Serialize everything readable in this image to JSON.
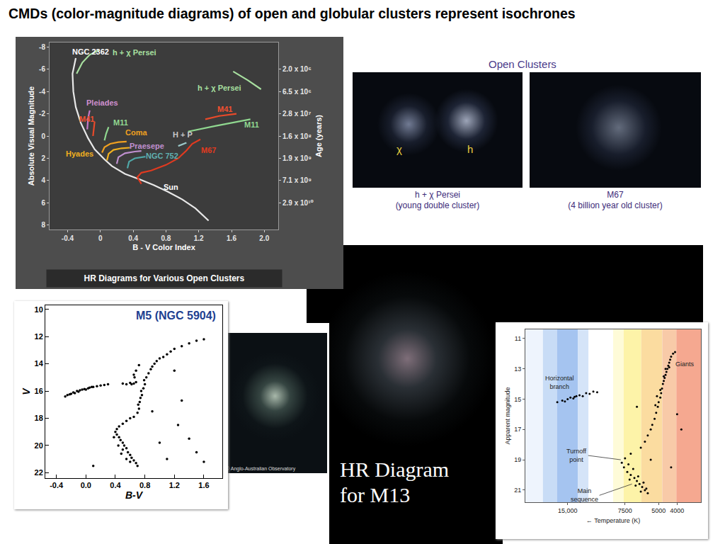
{
  "title": "CMDs (color-magnitude diagrams) of open and globular clusters represent isochrones",
  "photos": {
    "heading": "Open Clusters",
    "items": [
      {
        "caption": "h + χ Persei",
        "note": "(young double cluster)",
        "marks": [
          "χ",
          "h"
        ]
      },
      {
        "caption": "M67",
        "note": "(4 billion year old cluster)"
      }
    ],
    "credit": "© Anglo-Australian Observatory"
  },
  "chart_data": [
    {
      "type": "line",
      "title": "HR Diagrams for Various Open Clusters",
      "x_label": "B - V Color Index",
      "y_label": "Absolute Visual Magnitude",
      "y2_label": "Age (years)",
      "xlim": [
        -0.62,
        2.17
      ],
      "xticks": [
        -0.4,
        0,
        0.4,
        0.8,
        1.2,
        1.6,
        {
          "value": 2,
          "label": "2.0"
        }
      ],
      "ylim": [
        8.4,
        -8.4
      ],
      "yticks": [
        -8,
        -6,
        -4,
        -2,
        0,
        2,
        4,
        6,
        8
      ],
      "y2lim": [
        8.4,
        -8.4
      ],
      "y2ticks": [
        {
          "value": -6,
          "label": "2.0 x 10⁶"
        },
        {
          "value": -4,
          "label": "6.5 x 10⁶"
        },
        {
          "value": -2,
          "label": "2.8 x 10⁷"
        },
        {
          "value": 0,
          "label": "1.6 x 10⁸"
        },
        {
          "value": 2,
          "label": "1.9 x 10⁹"
        },
        {
          "value": 4,
          "label": "7.1 x 10⁹"
        },
        {
          "value": 6,
          "label": "2.9 x 10¹⁰"
        }
      ],
      "grid": false,
      "series": [
        {
          "color": "#e8e8e8",
          "x": [
            -0.3,
            -0.34,
            -0.33,
            -0.3,
            -0.24,
            -0.15,
            -0.07,
            0.05,
            0.14,
            0.3,
            0.48,
            0.65,
            0.82,
            1.0,
            1.16,
            1.32
          ],
          "values": [
            -7.0,
            -5.6,
            -4.0,
            -2.6,
            -1.2,
            0.2,
            1.2,
            2.1,
            2.7,
            3.4,
            3.9,
            4.4,
            5.0,
            5.7,
            6.5,
            7.6
          ]
        },
        {
          "color": "#a8e0a0",
          "x": [
            -0.29,
            -0.22,
            -0.13,
            -0.02
          ],
          "values": [
            -5.6,
            -6.6,
            -7.3,
            -7.7
          ]
        },
        {
          "color": "#a8e0a0",
          "x": [
            1.62,
            1.8,
            1.96
          ],
          "values": [
            -5.8,
            -5.0,
            -4.2
          ]
        },
        {
          "color": "#c878c8",
          "x": [
            -0.16,
            -0.15,
            -0.13
          ],
          "values": [
            -0.6,
            -1.6,
            -2.3
          ]
        },
        {
          "color": "#e84a2a",
          "x": [
            -0.09,
            -0.08,
            -0.07
          ],
          "values": [
            0.0,
            -0.7,
            -1.3
          ]
        },
        {
          "color": "#e84a2a",
          "x": [
            1.28,
            1.45,
            1.66
          ],
          "values": [
            -1.5,
            -1.8,
            -2.0
          ]
        },
        {
          "color": "#90d890",
          "x": [
            0.05,
            0.07,
            0.1
          ],
          "values": [
            0.4,
            -0.2,
            -0.8
          ]
        },
        {
          "color": "#90d890",
          "x": [
            1.07,
            1.4,
            1.83
          ],
          "values": [
            -0.4,
            -0.9,
            -1.5
          ]
        },
        {
          "color": "#f0a020",
          "x": [
            0.02,
            0.05,
            0.12,
            0.22,
            0.32
          ],
          "values": [
            1.5,
            1.0,
            0.7,
            0.55,
            0.5
          ]
        },
        {
          "color": "#f0b020",
          "x": [
            0.08,
            0.1,
            0.16,
            0.26,
            0.36
          ],
          "values": [
            2.2,
            1.6,
            1.25,
            1.1,
            1.05
          ]
        },
        {
          "color": "#c090d0",
          "x": [
            0.2,
            0.22,
            0.3,
            0.42,
            0.5
          ],
          "values": [
            2.5,
            1.9,
            1.55,
            1.4,
            1.35
          ]
        },
        {
          "color": "#50a8a8",
          "x": [
            0.33,
            0.35,
            0.42,
            0.55
          ],
          "values": [
            2.9,
            2.3,
            2.0,
            1.85
          ]
        },
        {
          "color": "#9ac8c8",
          "x": [
            0.95,
            1.05
          ],
          "values": [
            0.9,
            0.6
          ]
        },
        {
          "color": "#e03a20",
          "x": [
            0.5,
            0.45,
            0.5,
            0.62,
            0.8,
            0.95,
            1.05,
            1.12,
            1.22
          ],
          "values": [
            4.3,
            3.7,
            3.3,
            3.1,
            2.6,
            2.0,
            1.3,
            0.7,
            0.3
          ]
        }
      ],
      "annotations": [
        {
          "text": "NGC 2362",
          "x": -0.12,
          "y": -7.6,
          "color": "#ffffff"
        },
        {
          "text": "h + χ Persei",
          "x": 0.42,
          "y": -7.5,
          "color": "#a8e0a0"
        },
        {
          "text": "h + χ Persei",
          "x": 1.45,
          "y": -4.3,
          "color": "#a8e0a0"
        },
        {
          "text": "Pleiades",
          "x": 0.02,
          "y": -3.0,
          "color": "#d090d0"
        },
        {
          "text": "M41",
          "x": -0.17,
          "y": -1.5,
          "color": "#f05030"
        },
        {
          "text": "M41",
          "x": 1.52,
          "y": -2.4,
          "color": "#f05030"
        },
        {
          "text": "M11",
          "x": 0.25,
          "y": -1.2,
          "color": "#90d890"
        },
        {
          "text": "M11",
          "x": 1.85,
          "y": -1.0,
          "color": "#90d890"
        },
        {
          "text": "Coma",
          "x": 0.44,
          "y": -0.3,
          "color": "#f0a020"
        },
        {
          "text": "H + P",
          "x": 1.0,
          "y": -0.1,
          "color": "#c8c8c8"
        },
        {
          "text": "Praesepe",
          "x": 0.57,
          "y": 0.9,
          "color": "#c090d0"
        },
        {
          "text": "Hyades",
          "x": -0.25,
          "y": 1.6,
          "color": "#f0b020"
        },
        {
          "text": "NGC 752",
          "x": 0.75,
          "y": 1.8,
          "color": "#60b0b0"
        },
        {
          "text": "M67",
          "x": 1.32,
          "y": 1.3,
          "color": "#e03a20"
        },
        {
          "text": "Sun",
          "x": 0.86,
          "y": 4.6,
          "color": "#ffffff"
        }
      ]
    },
    {
      "type": "scatter",
      "title": "M5 (NGC 5904)",
      "x_label": "B-V",
      "y_label": "V",
      "xlim": [
        -0.55,
        1.85
      ],
      "xticks": [
        -0.4,
        {
          "value": 0,
          "label": "0.0"
        },
        0.4,
        0.8,
        1.2,
        1.6
      ],
      "ylim": [
        22.4,
        9.7
      ],
      "yticks": [
        10,
        12,
        14,
        16,
        18,
        20,
        22
      ],
      "grid": false,
      "color": "#000000",
      "marker": "circle",
      "x": [
        -0.28,
        -0.25,
        -0.22,
        -0.2,
        -0.17,
        -0.15,
        -0.12,
        -0.1,
        -0.08,
        -0.05,
        -0.02,
        0.0,
        0.03,
        0.05,
        0.08,
        0.1,
        0.15,
        0.2,
        0.25,
        0.3,
        0.5,
        0.55,
        0.6,
        0.62,
        0.65,
        0.68,
        0.7,
        0.72,
        0.71,
        0.73,
        0.74,
        0.76,
        0.75,
        0.78,
        0.8,
        0.79,
        0.82,
        0.85,
        0.88,
        0.9,
        0.93,
        0.96,
        1.0,
        1.05,
        1.1,
        1.15,
        1.2,
        1.3,
        1.4,
        1.5,
        1.6,
        0.65,
        0.68,
        0.72,
        0.66,
        0.55,
        0.6,
        0.65,
        0.5,
        0.45,
        0.42,
        0.4,
        0.42,
        0.45,
        0.47,
        0.5,
        0.52,
        0.55,
        0.5,
        0.57,
        0.6,
        0.62,
        0.55,
        0.65,
        0.68,
        0.7,
        0.6,
        0.48,
        0.44,
        0.38,
        1.2,
        1.3,
        1.4,
        1.5,
        1.0,
        0.1,
        1.1,
        1.6,
        0.9,
        1.25
      ],
      "values": [
        16.4,
        16.3,
        16.25,
        16.2,
        16.1,
        16.15,
        16.0,
        16.05,
        15.95,
        15.9,
        15.85,
        15.9,
        15.8,
        15.75,
        15.7,
        15.7,
        15.65,
        15.6,
        15.55,
        15.5,
        15.45,
        15.5,
        15.4,
        15.5,
        15.45,
        15.35,
        17.6,
        17.3,
        17.0,
        16.8,
        16.5,
        16.3,
        16.0,
        15.8,
        15.5,
        15.2,
        15.0,
        14.7,
        14.4,
        14.2,
        14.0,
        13.8,
        13.6,
        13.5,
        13.3,
        13.1,
        12.9,
        12.7,
        12.5,
        12.3,
        12.2,
        14.8,
        14.5,
        14.1,
        15.0,
        18.2,
        18.0,
        17.9,
        18.4,
        18.6,
        18.8,
        19.0,
        19.2,
        19.4,
        19.6,
        19.8,
        20.0,
        20.2,
        20.3,
        20.5,
        20.7,
        20.9,
        21.0,
        21.1,
        21.3,
        21.5,
        21.2,
        20.6,
        20.0,
        19.4,
        14.5,
        16.7,
        19.5,
        20.5,
        19.8,
        21.5,
        21.0,
        21.2,
        17.5,
        18.5
      ]
    },
    {
      "type": "scatter",
      "title": "HR Diagram\nfor M13",
      "x_label": "← Temperature (K)",
      "y_label": "Apparent magnitude",
      "log": "x",
      "xlim": [
        25000,
        3000
      ],
      "xticks": [
        {
          "value": 15000,
          "label": "15,000"
        },
        7500,
        5000,
        4000
      ],
      "ylim": [
        21.8,
        10.4
      ],
      "yticks": [
        11,
        13,
        15,
        17,
        19,
        21
      ],
      "grid": false,
      "color": "#000000",
      "marker": "circle",
      "x": [
        17000,
        16000,
        15000,
        14500,
        14000,
        13500,
        13000,
        12500,
        12000,
        11500,
        11000,
        10500,
        15500,
        13800,
        4300,
        4350,
        4400,
        4450,
        4500,
        4550,
        4600,
        4650,
        4700,
        4750,
        4800,
        4850,
        4900,
        5000,
        5050,
        5150,
        5250,
        5400,
        5500,
        5700,
        5900,
        6200,
        4200,
        4100,
        4400,
        4600,
        4700,
        4900,
        5100,
        5200,
        7000,
        7500,
        7800,
        7600,
        7300,
        7000,
        6700,
        6500,
        6300,
        6100,
        5900,
        5700,
        6800,
        7200,
        6400,
        6000,
        5800,
        6600,
        6200,
        7100,
        4000,
        3800,
        5500,
        4300,
        6500
      ],
      "values": [
        15.2,
        15.1,
        15.0,
        14.9,
        14.95,
        14.8,
        14.75,
        14.8,
        14.6,
        14.65,
        14.5,
        14.55,
        15.15,
        14.85,
        12.2,
        12.4,
        12.6,
        12.8,
        13.0,
        13.2,
        13.4,
        13.6,
        13.8,
        14.0,
        14.3,
        14.6,
        14.9,
        15.2,
        15.5,
        15.9,
        16.3,
        16.7,
        17.0,
        17.4,
        17.8,
        18.2,
        12.0,
        11.9,
        12.9,
        13.0,
        13.5,
        14.4,
        14.8,
        15.4,
        18.6,
        18.9,
        19.2,
        19.5,
        19.8,
        20.0,
        20.2,
        20.4,
        20.6,
        20.8,
        21.0,
        21.2,
        19.6,
        19.3,
        20.1,
        20.5,
        20.9,
        20.7,
        21.1,
        20.3,
        16.0,
        17.0,
        19.0,
        19.5,
        15.5
      ],
      "annotations": [
        {
          "text": "Giants",
          "x": 3650,
          "y": 12.7
        },
        {
          "text": "Horizontal\nbranch",
          "x": 16500,
          "y": 13.9
        },
        {
          "text": "Turnoff\npoint",
          "x": 7900,
          "y": 19.0
        },
        {
          "text": "Main\nsequence",
          "x": 6900,
          "y": 20.6
        }
      ]
    }
  ]
}
